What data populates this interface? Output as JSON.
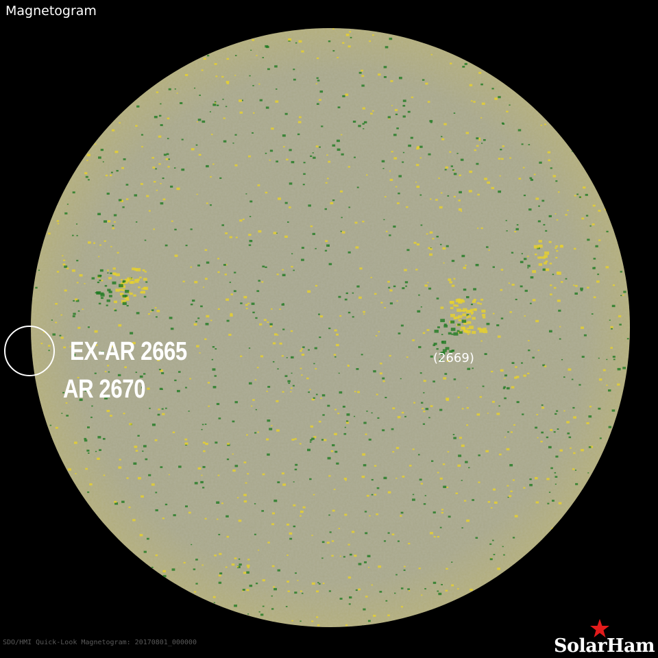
{
  "title": "Magnetogram",
  "labels": {
    "ex_ar": "EX-AR 2665",
    "ar": "AR 2670",
    "region_2669": "(2669)"
  },
  "caption": "SDO/HMI Quick-Look Magnetogram: 20170801_000000",
  "logo": "SolarHam",
  "colors": {
    "disk": "#a9a88c",
    "positive": "#e8d22a",
    "negative": "#1f7a22",
    "logo_star": "#e21b1b",
    "background": "#000000"
  }
}
